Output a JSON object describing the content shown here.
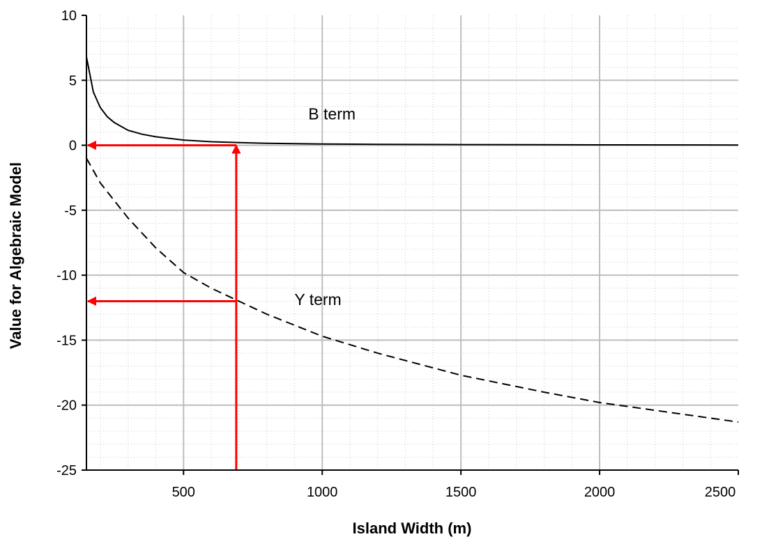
{
  "chart_data": {
    "type": "line",
    "title": "",
    "xlabel": "Island Width (m)",
    "ylabel": "Value for Algebraic Model",
    "xlim": [
      150,
      2500
    ],
    "ylim": [
      -25,
      10
    ],
    "x_ticks": [
      {
        "value": 500,
        "label": "500"
      },
      {
        "value": 1000,
        "label": "1000"
      },
      {
        "value": 1500,
        "label": "1500"
      },
      {
        "value": 2000,
        "label": "2000"
      },
      {
        "value": 2500,
        "label": "2500"
      }
    ],
    "y_ticks": [
      {
        "value": 10,
        "label": "10"
      },
      {
        "value": 5,
        "label": "5"
      },
      {
        "value": 0,
        "label": "0"
      },
      {
        "value": -5,
        "label": "-5"
      },
      {
        "value": -10,
        "label": "-10"
      },
      {
        "value": -15,
        "label": "-15"
      },
      {
        "value": -20,
        "label": "-20"
      },
      {
        "value": -25,
        "label": "-25"
      }
    ],
    "grid": {
      "major": true,
      "minor": true
    },
    "series": [
      {
        "name": "B term",
        "style": "solid",
        "color": "#000000",
        "x": [
          150,
          175,
          200,
          225,
          250,
          300,
          350,
          400,
          500,
          600,
          700,
          800,
          1000,
          1200,
          1500,
          2000,
          2500
        ],
        "y": [
          6.8,
          4.1,
          2.9,
          2.2,
          1.75,
          1.15,
          0.85,
          0.65,
          0.4,
          0.27,
          0.2,
          0.15,
          0.1,
          0.07,
          0.05,
          0.03,
          0.02
        ]
      },
      {
        "name": "Y term",
        "style": "dashed",
        "color": "#000000",
        "x": [
          150,
          200,
          300,
          400,
          500,
          600,
          700,
          800,
          1000,
          1200,
          1500,
          1800,
          2000,
          2200,
          2500
        ],
        "y": [
          -1.0,
          -2.9,
          -5.6,
          -7.9,
          -9.8,
          -11.0,
          -12.0,
          -13.0,
          -14.7,
          -16.0,
          -17.7,
          -19.0,
          -19.8,
          -20.4,
          -21.3
        ]
      }
    ],
    "annotations": [
      {
        "kind": "arrow",
        "color": "#ff0000",
        "from": [
          690,
          -25
        ],
        "to": [
          690,
          0
        ]
      },
      {
        "kind": "arrow",
        "color": "#ff0000",
        "from": [
          690,
          0
        ],
        "to": [
          150,
          0
        ]
      },
      {
        "kind": "arrow",
        "color": "#ff0000",
        "from": [
          690,
          -12
        ],
        "to": [
          150,
          -12
        ]
      },
      {
        "kind": "text",
        "text": "B term",
        "at": [
          950,
          2.0
        ]
      },
      {
        "kind": "text",
        "text": "Y term",
        "at": [
          900,
          -12.3
        ]
      }
    ]
  }
}
